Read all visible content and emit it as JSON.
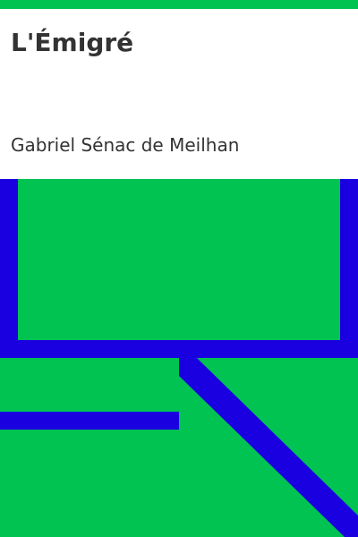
{
  "book": {
    "title": "L'Émigré",
    "author": "Gabriel Sénac de Meilhan"
  },
  "colors": {
    "background": "#00c352",
    "accent": "#1a00e0",
    "header_bg": "#ffffff",
    "text": "#333333"
  }
}
